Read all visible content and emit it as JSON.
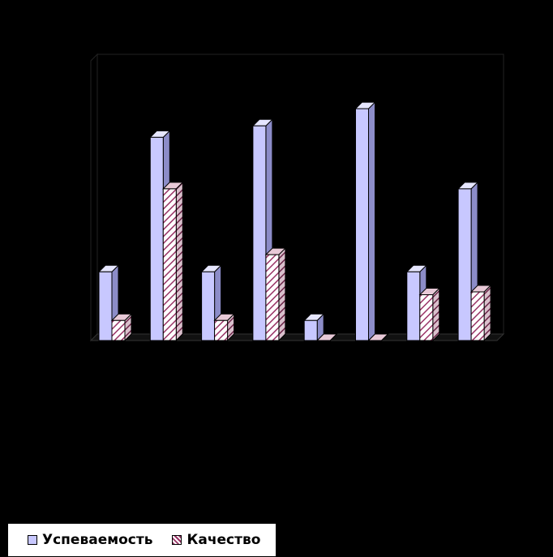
{
  "chart_data": {
    "type": "bar",
    "title": "",
    "xlabel": "",
    "ylabel": "",
    "categories": [
      "",
      "",
      "",
      "",
      "",
      "",
      "",
      ""
    ],
    "ylim": [
      0,
      100
    ],
    "grid": false,
    "style": "3d-clustered",
    "legend_position": "bottom-left",
    "series": [
      {
        "name": "Успеваемость",
        "values": [
          24,
          71,
          24,
          75,
          7,
          81,
          24,
          53
        ],
        "color": "#c8c8ff",
        "pattern": "solid"
      },
      {
        "name": "Качество",
        "values": [
          7,
          53,
          7,
          30,
          0,
          0,
          16,
          17
        ],
        "color": "#993366",
        "pattern": "diagonal-hatch"
      }
    ]
  },
  "legend": {
    "items": [
      "Успеваемость",
      "Качество"
    ]
  }
}
